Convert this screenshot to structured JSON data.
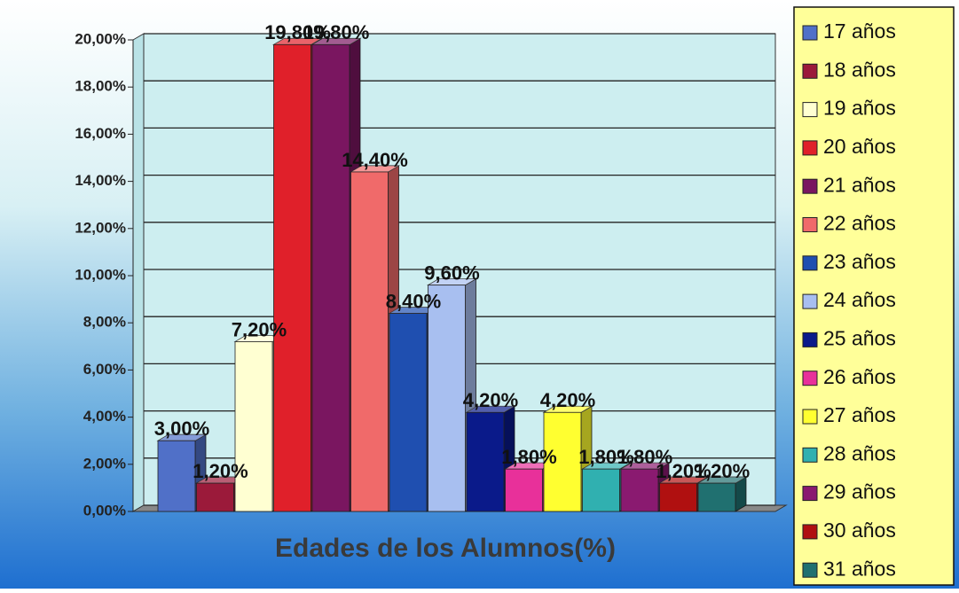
{
  "chart_data": {
    "type": "bar3d",
    "title": "Edades de los Alumnos(%)",
    "categories": [
      "17 años",
      "18 años",
      "19 años",
      "20 años",
      "21 años",
      "22 años",
      "23 años",
      "24 años",
      "25 años",
      "26 años",
      "27 años",
      "28 años",
      "29 años",
      "30 años",
      "31 años"
    ],
    "values": [
      3.0,
      1.2,
      7.2,
      19.8,
      19.8,
      14.4,
      8.4,
      9.6,
      4.2,
      1.8,
      4.2,
      1.8,
      1.8,
      1.2,
      1.2
    ],
    "value_labels": [
      "3,00%",
      "1,20%",
      "7,20%",
      "19,80%",
      "19,80%",
      "14,40%",
      "8,40%",
      "9,60%",
      "4,20%",
      "1,80%",
      "4,20%",
      "1,80%",
      "1,80%",
      "1,20%",
      "1,20%"
    ],
    "colors": [
      "#5070c8",
      "#9b1a3a",
      "#ffffd2",
      "#e0202a",
      "#7a1660",
      "#f06a6a",
      "#1f4fb0",
      "#a8bff0",
      "#0a1a8a",
      "#e8309a",
      "#ffff30",
      "#30b0b0",
      "#8a1a70",
      "#b01010",
      "#207070"
    ],
    "ylim": [
      0,
      20
    ],
    "yticks": [
      {
        "value": 0,
        "label": "0,00%"
      },
      {
        "value": 2,
        "label": "2,00%"
      },
      {
        "value": 4,
        "label": "4,00%"
      },
      {
        "value": 6,
        "label": "6,00%"
      },
      {
        "value": 8,
        "label": "8,00%"
      },
      {
        "value": 10,
        "label": "10,00%"
      },
      {
        "value": 12,
        "label": "12,00%"
      },
      {
        "value": 14,
        "label": "14,00%"
      },
      {
        "value": 16,
        "label": "16,00%"
      },
      {
        "value": 18,
        "label": "18,00%"
      },
      {
        "value": 20,
        "label": "20,00%"
      }
    ],
    "grid": true,
    "legend": "right"
  }
}
